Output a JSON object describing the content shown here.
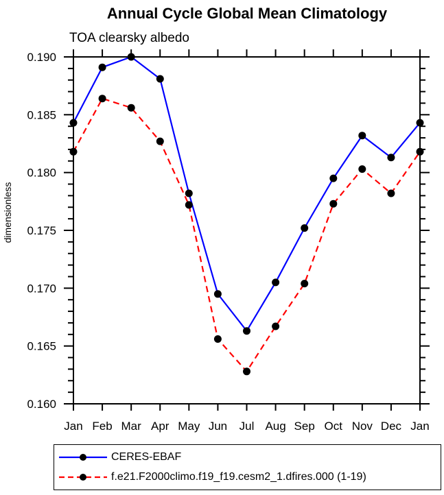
{
  "page": {
    "background": "#ffffff",
    "axis_color": "#000000"
  },
  "chart_data": {
    "type": "line",
    "title": "Annual Cycle Global Mean Climatology",
    "subtitle": "TOA clearsky albedo",
    "xlabel": "",
    "ylabel": "dimensionless",
    "categories": [
      "Jan",
      "Feb",
      "Mar",
      "Apr",
      "May",
      "Jun",
      "Jul",
      "Aug",
      "Sep",
      "Oct",
      "Nov",
      "Dec",
      "Jan"
    ],
    "ylim": [
      0.16,
      0.19
    ],
    "ytick_major_step": 0.005,
    "ytick_minor_step": 0.001,
    "ytick_labels": [
      "0.190",
      "0.185",
      "0.180",
      "0.175",
      "0.170",
      "0.165",
      "0.160"
    ],
    "grid": false,
    "legend_position": "bottom",
    "series": [
      {
        "name": "CERES-EBAF",
        "color": "#0000ff",
        "line_style": "solid",
        "marker": "circle",
        "marker_color": "#000000",
        "values": [
          0.1843,
          0.1891,
          0.19,
          0.1881,
          0.1782,
          0.1695,
          0.1663,
          0.1705,
          0.1752,
          0.1795,
          0.1832,
          0.1813,
          0.1843
        ]
      },
      {
        "name": "f.e21.F2000climo.f19_f19.cesm2_1.dfires.000 (1-19)",
        "color": "#ff0000",
        "line_style": "dashed",
        "marker": "circle",
        "marker_color": "#000000",
        "values": [
          0.1818,
          0.1864,
          0.1856,
          0.1827,
          0.1772,
          0.1656,
          0.1628,
          0.1667,
          0.1704,
          0.1773,
          0.1803,
          0.1782,
          0.1818
        ]
      }
    ]
  }
}
